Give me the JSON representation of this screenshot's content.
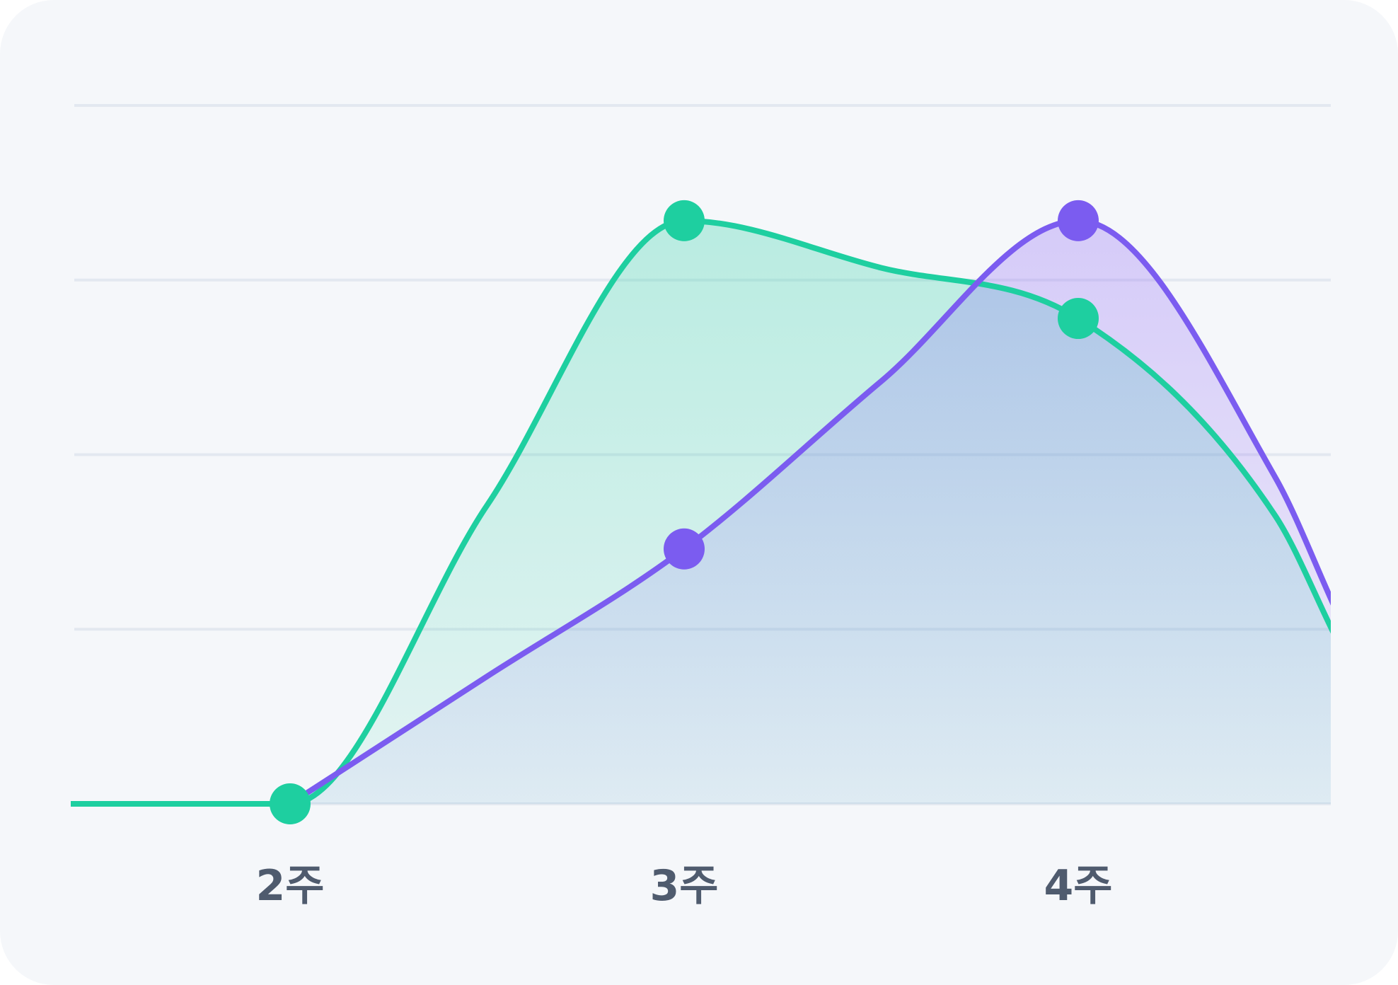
{
  "chart_data": {
    "type": "area",
    "categories": [
      "2주",
      "3주",
      "4주"
    ],
    "title": "",
    "xlabel": "",
    "ylabel": "",
    "ylim": [
      0,
      4
    ],
    "grid": true,
    "legend": "none",
    "series": [
      {
        "color": "#1ecfa0",
        "points": [
          {
            "x": 1.0,
            "y": 0.0
          },
          {
            "x": 1.5,
            "y": 0.0
          },
          {
            "x": 2.0,
            "y": 0.0
          },
          {
            "x": 2.5,
            "y": 1.71
          },
          {
            "x": 3.0,
            "y": 3.34
          },
          {
            "x": 3.5,
            "y": 3.07
          },
          {
            "x": 4.0,
            "y": 2.78
          },
          {
            "x": 4.5,
            "y": 1.65
          },
          {
            "x": 4.65,
            "y": 0.97
          }
        ],
        "markers": [
          {
            "x": 2.0,
            "y": 0.0
          },
          {
            "x": 3.0,
            "y": 3.34
          },
          {
            "x": 4.0,
            "y": 2.78
          }
        ]
      },
      {
        "color": "#7b5cf0",
        "points": [
          {
            "x": 2.0,
            "y": 0.0
          },
          {
            "x": 2.5,
            "y": 0.73
          },
          {
            "x": 3.0,
            "y": 1.46
          },
          {
            "x": 3.5,
            "y": 2.42
          },
          {
            "x": 4.0,
            "y": 3.34
          },
          {
            "x": 4.5,
            "y": 1.87
          },
          {
            "x": 4.65,
            "y": 1.13
          }
        ],
        "markers": [
          {
            "x": 3.0,
            "y": 1.46
          },
          {
            "x": 4.0,
            "y": 3.34
          }
        ]
      }
    ]
  }
}
